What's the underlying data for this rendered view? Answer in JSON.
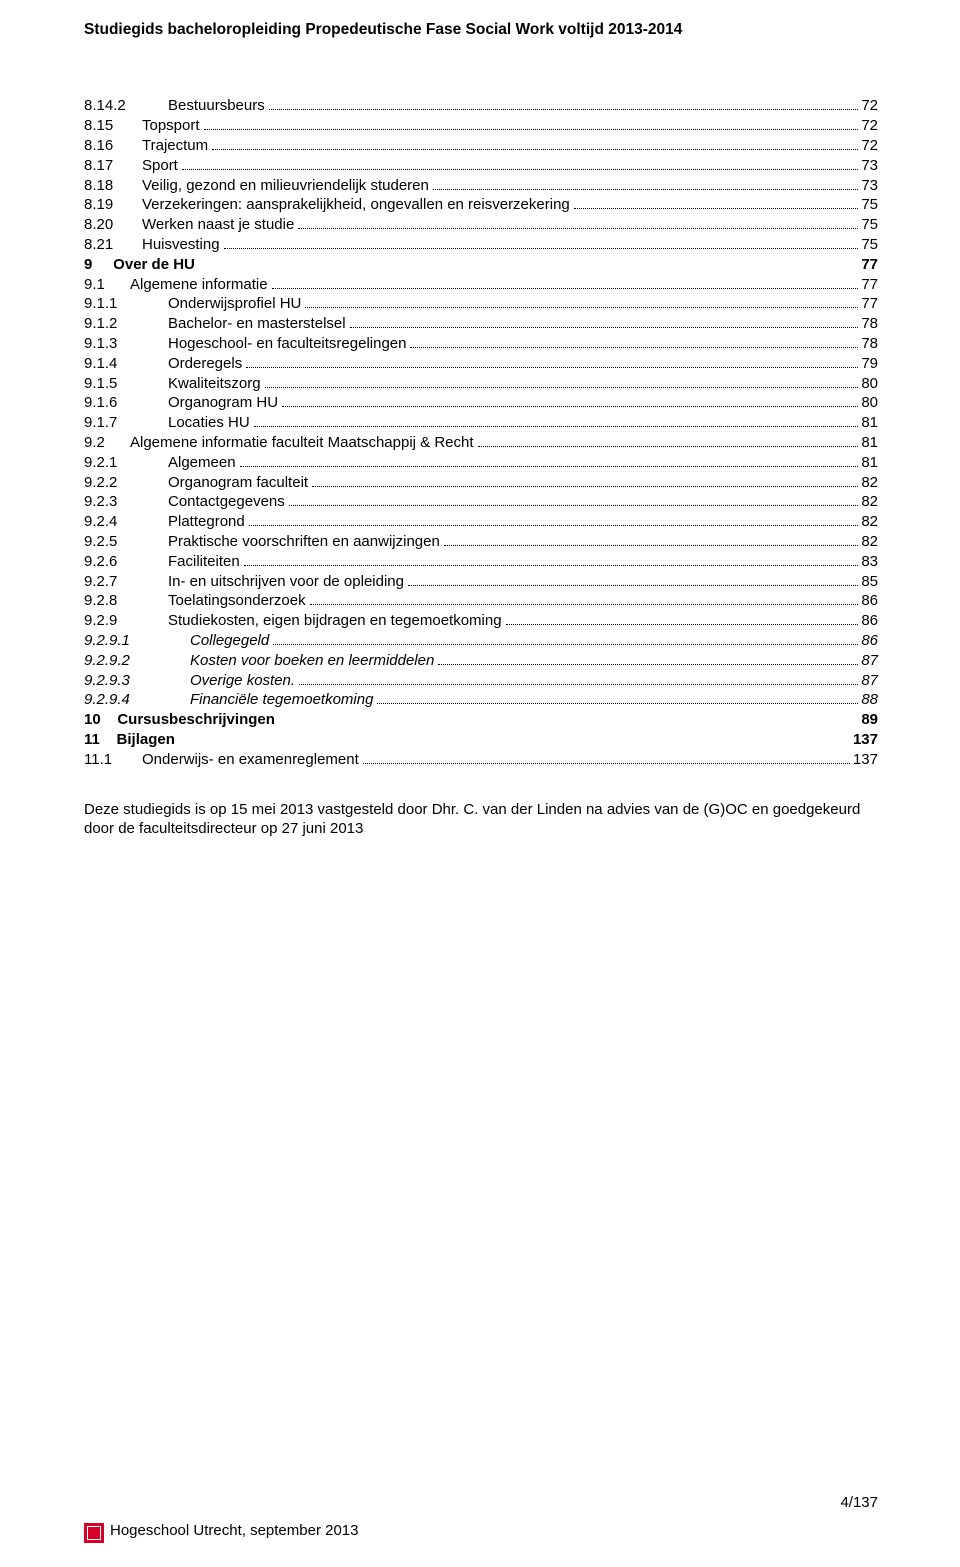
{
  "header": "Studiegids bacheloropleiding  Propedeutische Fase Social Work voltijd 2013-2014",
  "toc": [
    {
      "type": "dots",
      "num": "8.14.2",
      "title": "Bestuursbeurs",
      "page": "72",
      "numClass": "num-col-b"
    },
    {
      "type": "dots",
      "num": "8.15",
      "title": " Topsport",
      "page": "72",
      "numClass": "num-col-a",
      "noPad": true
    },
    {
      "type": "dots",
      "num": "8.16",
      "title": " Trajectum",
      "page": "72",
      "numClass": "num-col-a",
      "noPad": true
    },
    {
      "type": "dots",
      "num": "8.17",
      "title": " Sport",
      "page": "73",
      "numClass": "num-col-a",
      "noPad": true
    },
    {
      "type": "dots",
      "num": "8.18",
      "title": " Veilig, gezond en milieuvriendelijk studeren",
      "page": "73",
      "numClass": "num-col-a",
      "noPad": true
    },
    {
      "type": "dots",
      "num": "8.19",
      "title": " Verzekeringen: aansprakelijkheid, ongevallen en reisverzekering",
      "page": "75",
      "numClass": "num-col-a",
      "noPad": true
    },
    {
      "type": "dots",
      "num": "8.20",
      "title": " Werken naast je studie",
      "page": "75",
      "numClass": "num-col-a",
      "noPad": true
    },
    {
      "type": "dots",
      "num": "8.21",
      "title": " Huisvesting",
      "page": "75",
      "numClass": "num-col-a",
      "noPad": true
    },
    {
      "type": "chap",
      "left": "9     Over de HU",
      "page": "77"
    },
    {
      "type": "dots",
      "num": "9.1",
      "title": "Algemene informatie",
      "page": "77",
      "numClass": "num-col-c"
    },
    {
      "type": "dots",
      "num": "9.1.1",
      "title": "Onderwijsprofiel HU",
      "page": "77",
      "numClass": "num-col-b"
    },
    {
      "type": "dots",
      "num": "9.1.2",
      "title": "Bachelor- en masterstelsel",
      "page": "78",
      "numClass": "num-col-b"
    },
    {
      "type": "dots",
      "num": "9.1.3",
      "title": "Hogeschool- en faculteitsregelingen",
      "page": "78",
      "numClass": "num-col-b"
    },
    {
      "type": "dots",
      "num": "9.1.4",
      "title": "Orderegels",
      "page": "79",
      "numClass": "num-col-b"
    },
    {
      "type": "dots",
      "num": "9.1.5",
      "title": "Kwaliteitszorg",
      "page": "80",
      "numClass": "num-col-b"
    },
    {
      "type": "dots",
      "num": "9.1.6",
      "title": "Organogram HU",
      "page": "80",
      "numClass": "num-col-b"
    },
    {
      "type": "dots",
      "num": "9.1.7",
      "title": "Locaties HU",
      "page": "81",
      "numClass": "num-col-b"
    },
    {
      "type": "dots",
      "num": "9.2",
      "title": "Algemene informatie faculteit Maatschappij & Recht",
      "page": "81",
      "numClass": "num-col-c"
    },
    {
      "type": "dots",
      "num": "9.2.1",
      "title": "Algemeen",
      "page": "81",
      "numClass": "num-col-b"
    },
    {
      "type": "dots",
      "num": "9.2.2",
      "title": "Organogram faculteit",
      "page": "82",
      "numClass": "num-col-b"
    },
    {
      "type": "dots",
      "num": "9.2.3",
      "title": "Contactgegevens",
      "page": "82",
      "numClass": "num-col-b"
    },
    {
      "type": "dots",
      "num": "9.2.4",
      "title": "Plattegrond",
      "page": "82",
      "numClass": "num-col-b"
    },
    {
      "type": "dots",
      "num": "9.2.5",
      "title": "Praktische voorschriften en aanwijzingen",
      "page": "82",
      "numClass": "num-col-b"
    },
    {
      "type": "dots",
      "num": "9.2.6",
      "title": "Faciliteiten",
      "page": "83",
      "numClass": "num-col-b"
    },
    {
      "type": "dots",
      "num": "9.2.7",
      "title": "In- en uitschrijven voor de opleiding",
      "page": "85",
      "numClass": "num-col-b"
    },
    {
      "type": "dots",
      "num": "9.2.8",
      "title": "Toelatingsonderzoek",
      "page": "86",
      "numClass": "num-col-b"
    },
    {
      "type": "dots",
      "num": "9.2.9",
      "title": "Studiekosten, eigen bijdragen en tegemoetkoming",
      "page": "86",
      "numClass": "num-col-b"
    },
    {
      "type": "dots",
      "num": "9.2.9.1",
      "title": "Collegegeld",
      "page": "86",
      "numClass": "num-col-b2",
      "italic": true
    },
    {
      "type": "dots",
      "num": "9.2.9.2",
      "title": "Kosten voor boeken en leermiddelen",
      "page": "87",
      "numClass": "num-col-b2",
      "italic": true
    },
    {
      "type": "dots",
      "num": "9.2.9.3",
      "title": "Overige kosten.",
      "page": "87",
      "numClass": "num-col-b2",
      "italic": true
    },
    {
      "type": "dots",
      "num": "9.2.9.4",
      "title": "Financiële tegemoetkoming",
      "page": "88",
      "numClass": "num-col-b2",
      "italic": true
    },
    {
      "type": "chap",
      "left": "10    Cursusbeschrijvingen",
      "page": "89"
    },
    {
      "type": "chap",
      "left": "11    Bijlagen",
      "page": "137"
    },
    {
      "type": "dots",
      "num": "11.1",
      "title": " Onderwijs- en examenreglement",
      "page": "137",
      "numClass": "num-col-a",
      "noPad": true
    }
  ],
  "closing": "Deze studiegids is op 15 mei 2013 vastgesteld door  Dhr. C. van der Linden na advies van de (G)OC en goedgekeurd door de faculteitsdirecteur op 27 juni 2013",
  "footer_page": "4/137",
  "footer_left": "Hogeschool Utrecht, september 2013"
}
